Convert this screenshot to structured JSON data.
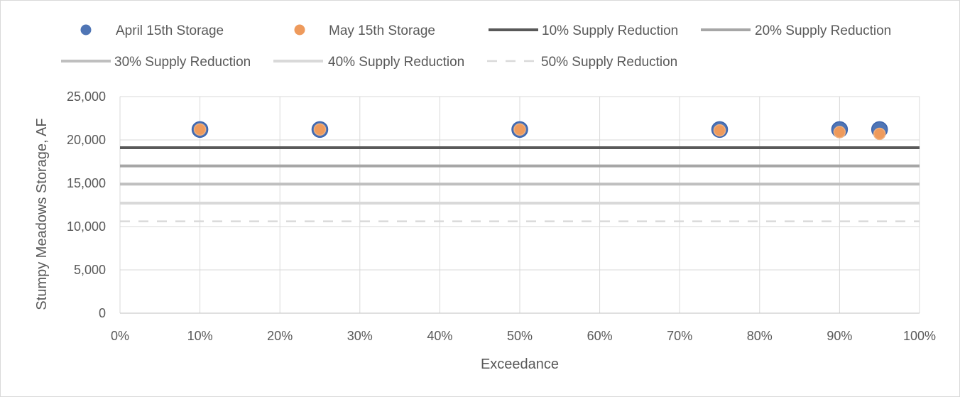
{
  "chart_data": {
    "type": "scatter",
    "title": "",
    "xlabel": "Exceedance",
    "ylabel": "Stumpy Meadows Storage, AF",
    "xlim": [
      0,
      1
    ],
    "ylim": [
      0,
      25000
    ],
    "x_ticks": [
      "0%",
      "10%",
      "20%",
      "30%",
      "40%",
      "50%",
      "60%",
      "70%",
      "80%",
      "90%",
      "100%"
    ],
    "y_ticks": [
      "0",
      "5,000",
      "10,000",
      "15,000",
      "20,000",
      "25,000"
    ],
    "grid": true,
    "legend_position": "top",
    "series": [
      {
        "name": "April 15th Storage",
        "kind": "scatter",
        "color": "#4472c4",
        "x": [
          0.1,
          0.25,
          0.5,
          0.75,
          0.9,
          0.95
        ],
        "y": [
          21200,
          21200,
          21200,
          21200,
          21200,
          21200
        ]
      },
      {
        "name": "May 15th Storage",
        "kind": "scatter",
        "color": "#ed7d31",
        "x": [
          0.1,
          0.25,
          0.5,
          0.75,
          0.9,
          0.95
        ],
        "y": [
          21200,
          21200,
          21200,
          21100,
          20900,
          20700
        ]
      },
      {
        "name": "10% Supply Reduction",
        "kind": "hline",
        "color": "#595959",
        "dash": false,
        "y": 19100
      },
      {
        "name": "20% Supply Reduction",
        "kind": "hline",
        "color": "#a6a6a6",
        "dash": false,
        "y": 17000
      },
      {
        "name": "30% Supply Reduction",
        "kind": "hline",
        "color": "#bfbfbf",
        "dash": false,
        "y": 14900
      },
      {
        "name": "40% Supply Reduction",
        "kind": "hline",
        "color": "#d9d9d9",
        "dash": false,
        "y": 12700
      },
      {
        "name": "50% Supply Reduction",
        "kind": "hline",
        "color": "#d9d9d9",
        "dash": true,
        "y": 10600
      }
    ]
  }
}
